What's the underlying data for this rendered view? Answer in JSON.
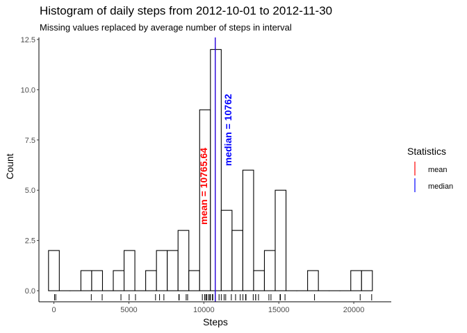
{
  "chart_data": {
    "type": "bar",
    "title": "Histogram of daily steps from 2012-10-01 to 2012-11-30",
    "subtitle": "Missing values replaced by average number of steps in interval",
    "xlabel": "Steps",
    "ylabel": "Count",
    "xlim": [
      -1000,
      22500
    ],
    "ylim": [
      -0.55,
      12.6
    ],
    "x_ticks": [
      0,
      5000,
      10000,
      15000,
      20000
    ],
    "x_tick_labels": [
      "0",
      "5000",
      "10000",
      "15000",
      "20000"
    ],
    "y_ticks": [
      0,
      2.5,
      5,
      7.5,
      10,
      12.5
    ],
    "y_tick_labels": [
      "0.0",
      "2.5",
      "5.0",
      "7.5",
      "10.0",
      "12.5"
    ],
    "bin_width": 720,
    "bins": [
      {
        "x0": -360,
        "x1": 360,
        "count": 2
      },
      {
        "x0": 360,
        "x1": 1080,
        "count": 0
      },
      {
        "x0": 1080,
        "x1": 1800,
        "count": 0
      },
      {
        "x0": 1800,
        "x1": 2520,
        "count": 1
      },
      {
        "x0": 2520,
        "x1": 3240,
        "count": 1
      },
      {
        "x0": 3240,
        "x1": 3960,
        "count": 0
      },
      {
        "x0": 3960,
        "x1": 4680,
        "count": 1
      },
      {
        "x0": 4680,
        "x1": 5400,
        "count": 2
      },
      {
        "x0": 5400,
        "x1": 6120,
        "count": 0
      },
      {
        "x0": 6120,
        "x1": 6840,
        "count": 1
      },
      {
        "x0": 6840,
        "x1": 7560,
        "count": 2
      },
      {
        "x0": 7560,
        "x1": 8280,
        "count": 2
      },
      {
        "x0": 8280,
        "x1": 9000,
        "count": 3
      },
      {
        "x0": 9000,
        "x1": 9720,
        "count": 1
      },
      {
        "x0": 9720,
        "x1": 10440,
        "count": 9
      },
      {
        "x0": 10440,
        "x1": 11160,
        "count": 12
      },
      {
        "x0": 11160,
        "x1": 11880,
        "count": 4
      },
      {
        "x0": 11880,
        "x1": 12600,
        "count": 3
      },
      {
        "x0": 12600,
        "x1": 13320,
        "count": 6
      },
      {
        "x0": 13320,
        "x1": 14040,
        "count": 1
      },
      {
        "x0": 14040,
        "x1": 14760,
        "count": 2
      },
      {
        "x0": 14760,
        "x1": 15480,
        "count": 5
      },
      {
        "x0": 15480,
        "x1": 16200,
        "count": 0
      },
      {
        "x0": 16200,
        "x1": 16920,
        "count": 0
      },
      {
        "x0": 16920,
        "x1": 17640,
        "count": 1
      },
      {
        "x0": 17640,
        "x1": 18360,
        "count": 0
      },
      {
        "x0": 18360,
        "x1": 19080,
        "count": 0
      },
      {
        "x0": 19080,
        "x1": 19800,
        "count": 0
      },
      {
        "x0": 19800,
        "x1": 20520,
        "count": 1
      },
      {
        "x0": 20520,
        "x1": 21240,
        "count": 1
      }
    ],
    "rug": [
      41,
      126,
      2492,
      3219,
      4472,
      5018,
      5441,
      6778,
      7047,
      7336,
      8334,
      8355,
      8821,
      8918,
      9900,
      10056,
      10139,
      10183,
      10304,
      10395,
      10439,
      10571,
      10600,
      10765,
      10765,
      11015,
      11162,
      11352,
      11458,
      11834,
      12116,
      12426,
      12608,
      12787,
      12811,
      13294,
      13452,
      13460,
      13646,
      14339,
      14478,
      15084,
      15098,
      15110,
      15414,
      17382,
      20427,
      21194
    ],
    "reference_lines": [
      {
        "name": "mean",
        "value": 10765.64,
        "color": "#ff0000",
        "label": "mean = 10765.64",
        "label_y": 5.2
      },
      {
        "name": "median",
        "value": 10762,
        "color": "#0000ff",
        "label": "median = 10762",
        "label_y": 8.0
      }
    ],
    "legend": {
      "title": "Statistics",
      "position": "right",
      "items": [
        {
          "label": "mean",
          "color": "#ff0000"
        },
        {
          "label": "median",
          "color": "#0000ff"
        }
      ]
    },
    "grid": false
  }
}
